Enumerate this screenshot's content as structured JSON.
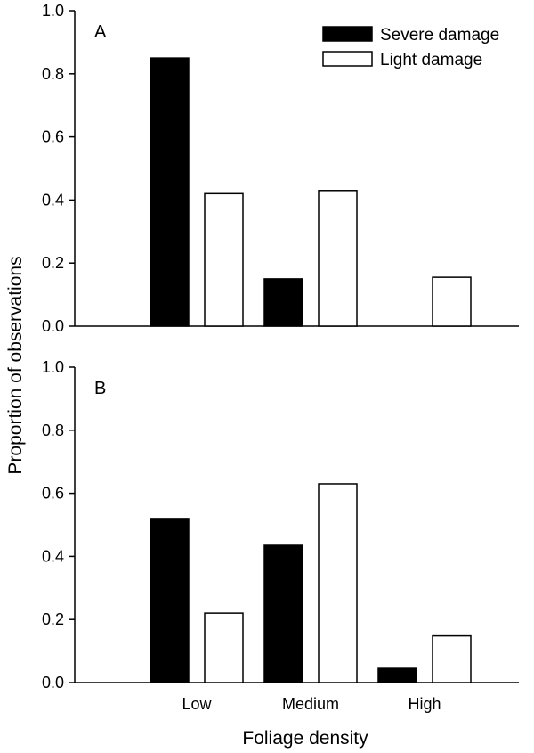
{
  "chart_data": {
    "type": "bar",
    "xlabel": "Foliage density",
    "ylabel": "Proportion of observations",
    "categories": [
      "Low",
      "Medium",
      "High"
    ],
    "ylim": [
      0,
      1.0
    ],
    "yticks": [
      "0.0",
      "0.2",
      "0.4",
      "0.6",
      "0.8",
      "1.0"
    ],
    "legend": {
      "position": "top-right",
      "entries": [
        {
          "name": "Severe damage",
          "color": "#000000"
        },
        {
          "name": "Light damage",
          "color": "#ffffff"
        }
      ]
    },
    "panels": [
      {
        "label": "A",
        "series": [
          {
            "name": "Severe damage",
            "values": [
              0.85,
              0.15,
              0.0
            ]
          },
          {
            "name": "Light damage",
            "values": [
              0.42,
              0.43,
              0.155
            ]
          }
        ]
      },
      {
        "label": "B",
        "series": [
          {
            "name": "Severe damage",
            "values": [
              0.52,
              0.435,
              0.045
            ]
          },
          {
            "name": "Light damage",
            "values": [
              0.22,
              0.63,
              0.148
            ]
          }
        ]
      }
    ]
  }
}
